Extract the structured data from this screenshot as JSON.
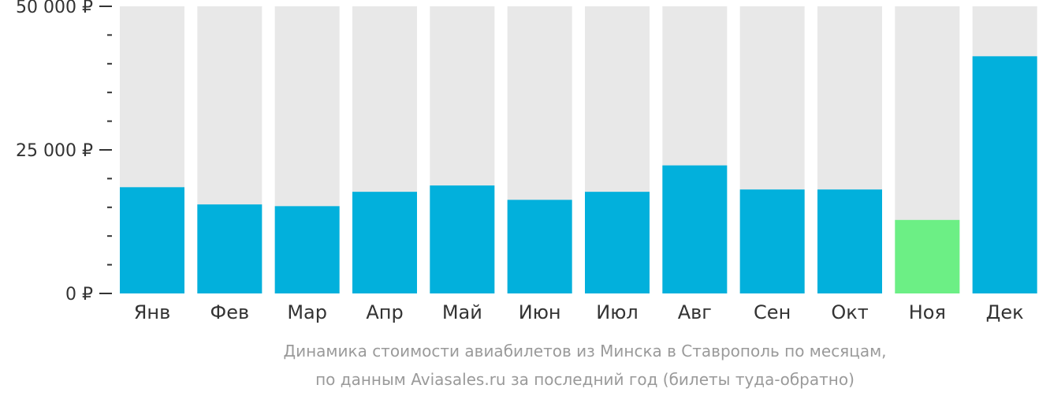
{
  "chart_data": {
    "type": "bar",
    "categories": [
      "Янв",
      "Фев",
      "Мар",
      "Апр",
      "Май",
      "Июн",
      "Июл",
      "Авг",
      "Сен",
      "Окт",
      "Ноя",
      "Дек"
    ],
    "values": [
      18500,
      15500,
      15200,
      17700,
      18800,
      16300,
      17700,
      22300,
      18100,
      18100,
      12800,
      41300
    ],
    "highlight_category": "Ноя",
    "ylim": [
      0,
      50000
    ],
    "yticks": [
      {
        "value": 0,
        "label": "0 ₽"
      },
      {
        "value": 25000,
        "label": "25 000 ₽"
      },
      {
        "value": 50000,
        "label": "50 000 ₽"
      }
    ],
    "minor_tick_step": 5000,
    "colors": {
      "bar": "#02b0dc",
      "highlight": "#6cef85",
      "background_bar": "#e8e8e8",
      "axis": "#333333"
    },
    "caption_line1": "Динамика стоимости авиабилетов из Минска в Ставрополь по месяцам,",
    "caption_line2": "по данным Aviasales.ru за последний год (билеты туда-обратно)"
  }
}
